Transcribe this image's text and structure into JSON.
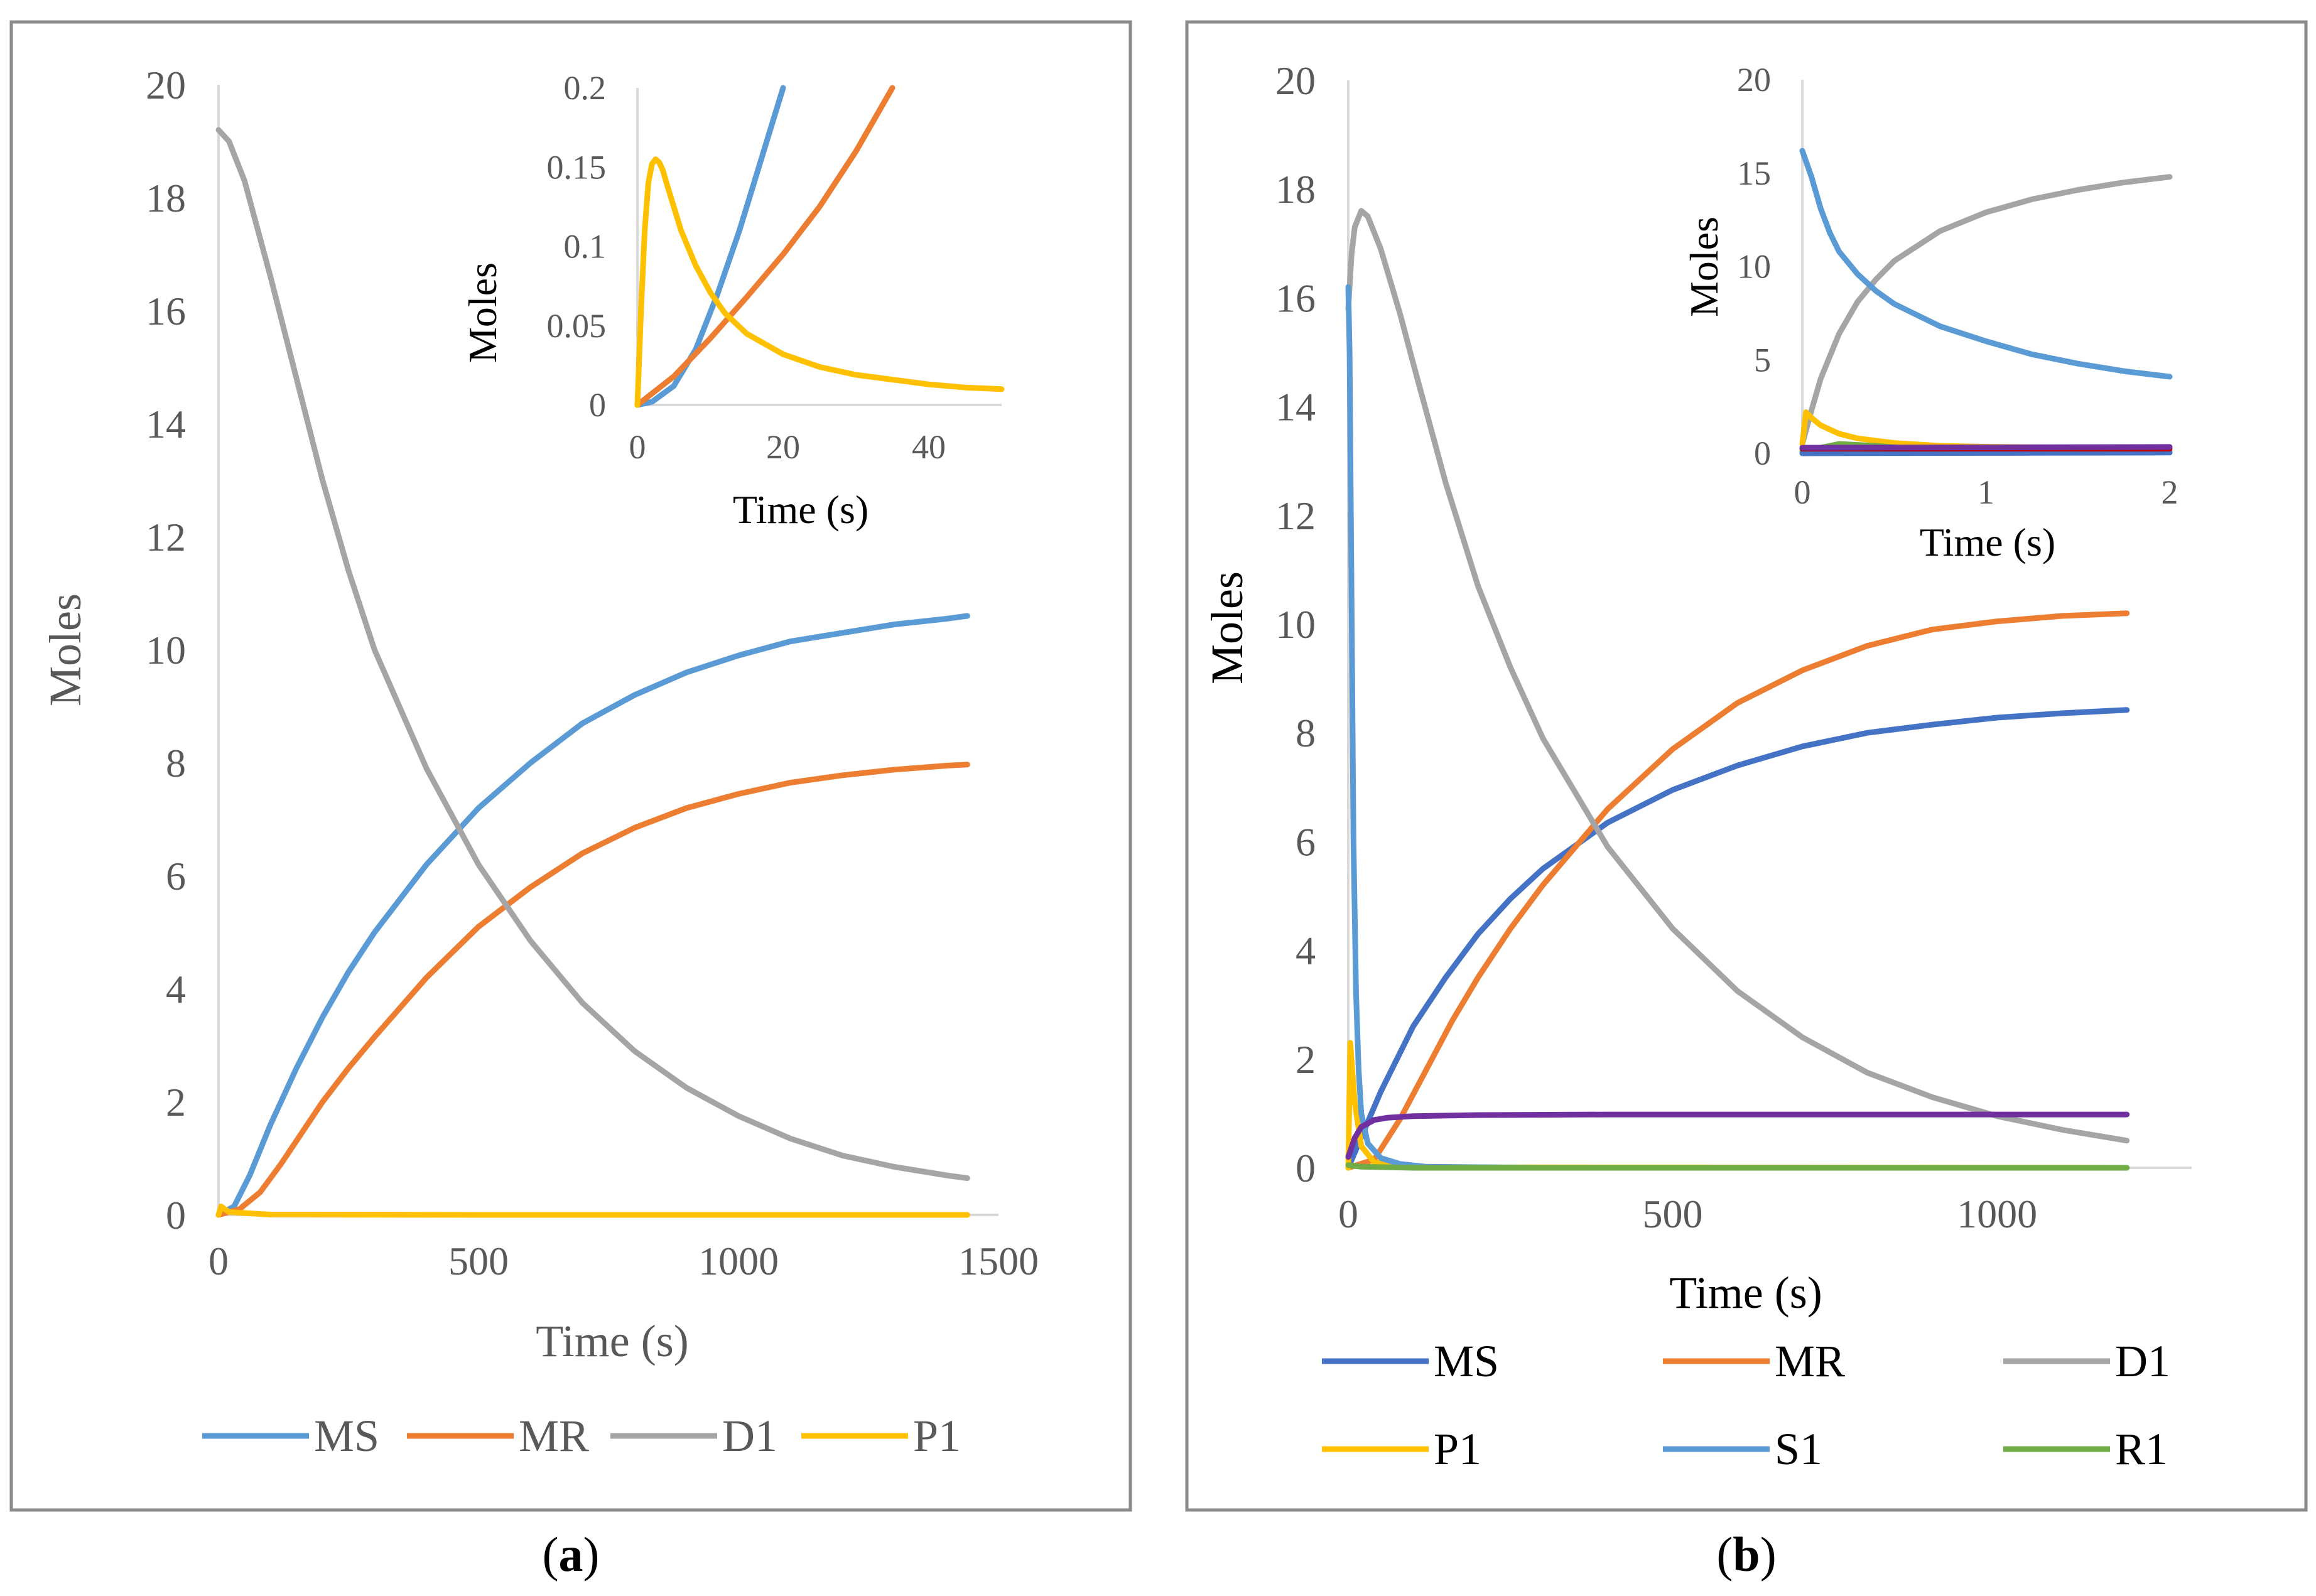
{
  "panels": [
    {
      "caption": "(a)",
      "caption_letter": "a",
      "chart": {
        "type": "line",
        "xlabel": "Time (s)",
        "ylabel": "Moles",
        "xlim": [
          0,
          1500
        ],
        "ylim": [
          0,
          20
        ],
        "xticks": [
          0,
          500,
          1000,
          1500
        ],
        "yticks": [
          0,
          2,
          4,
          6,
          8,
          10,
          12,
          14,
          16,
          18,
          20
        ],
        "legend_position": "bottom",
        "series": [
          {
            "name": "MS",
            "color": "#5B9BD5",
            "x": [
              0,
              30,
              60,
              100,
              150,
              200,
              250,
              300,
              400,
              500,
              600,
              700,
              800,
              900,
              1000,
              1100,
              1200,
              1300,
              1400,
              1440
            ],
            "y": [
              0,
              0.15,
              0.7,
              1.6,
              2.6,
              3.5,
              4.3,
              5.0,
              6.2,
              7.2,
              8.0,
              8.7,
              9.2,
              9.6,
              9.9,
              10.15,
              10.3,
              10.45,
              10.55,
              10.6
            ]
          },
          {
            "name": "MR",
            "color": "#ED7D31",
            "x": [
              0,
              40,
              80,
              120,
              160,
              200,
              250,
              300,
              400,
              500,
              600,
              700,
              800,
              900,
              1000,
              1100,
              1200,
              1300,
              1400,
              1440
            ],
            "y": [
              0,
              0.1,
              0.4,
              0.9,
              1.45,
              2.0,
              2.6,
              3.15,
              4.2,
              5.1,
              5.8,
              6.4,
              6.85,
              7.2,
              7.45,
              7.65,
              7.78,
              7.88,
              7.95,
              7.97
            ]
          },
          {
            "name": "D1",
            "color": "#A5A5A5",
            "x": [
              0,
              20,
              50,
              100,
              150,
              200,
              250,
              300,
              400,
              500,
              600,
              700,
              800,
              900,
              1000,
              1100,
              1200,
              1300,
              1400,
              1440
            ],
            "y": [
              19.2,
              19.0,
              18.3,
              16.6,
              14.8,
              13.0,
              11.4,
              10.0,
              7.9,
              6.2,
              4.85,
              3.75,
              2.9,
              2.25,
              1.75,
              1.35,
              1.05,
              0.85,
              0.7,
              0.65
            ]
          },
          {
            "name": "P1",
            "color": "#FFC000",
            "x": [
              0,
              5,
              20,
              100,
              500,
              1000,
              1440
            ],
            "y": [
              0.0,
              0.15,
              0.05,
              0.005,
              0.0,
              0.0,
              0.0
            ]
          }
        ]
      },
      "inset": {
        "type": "line",
        "xlabel": "Time (s)",
        "ylabel": "Moles",
        "xlim": [
          0,
          50
        ],
        "ylim": [
          0,
          0.2
        ],
        "xticks": [
          0,
          20,
          40
        ],
        "ytick_labels": [
          "0",
          "0.05",
          "0.1",
          "0.15",
          "0.2"
        ],
        "yticks": [
          0,
          0.05,
          0.1,
          0.15,
          0.2
        ],
        "series": [
          {
            "name": "MS",
            "color": "#5B9BD5",
            "x": [
              0,
              2,
              5,
              8,
              11,
              14,
              17,
              20
            ],
            "y": [
              0,
              0.002,
              0.012,
              0.035,
              0.07,
              0.11,
              0.155,
              0.2
            ]
          },
          {
            "name": "MR",
            "color": "#ED7D31",
            "x": [
              0,
              5,
              10,
              15,
              20,
              25,
              30,
              35
            ],
            "y": [
              0,
              0.018,
              0.042,
              0.068,
              0.095,
              0.125,
              0.16,
              0.2
            ]
          },
          {
            "name": "P1",
            "color": "#FFC000",
            "x": [
              0,
              0.5,
              1,
              1.5,
              2,
              2.5,
              3,
              3.5,
              4,
              5,
              6,
              8,
              10,
              12,
              15,
              20,
              25,
              30,
              35,
              40,
              45,
              50
            ],
            "y": [
              0,
              0.06,
              0.11,
              0.14,
              0.152,
              0.155,
              0.153,
              0.148,
              0.14,
              0.125,
              0.11,
              0.088,
              0.071,
              0.058,
              0.045,
              0.032,
              0.024,
              0.019,
              0.016,
              0.013,
              0.011,
              0.01
            ]
          }
        ]
      },
      "legend": [
        {
          "name": "MS",
          "color": "#5B9BD5"
        },
        {
          "name": "MR",
          "color": "#ED7D31"
        },
        {
          "name": "D1",
          "color": "#A5A5A5"
        },
        {
          "name": "P1",
          "color": "#FFC000"
        }
      ]
    },
    {
      "caption": "(b)",
      "caption_letter": "b",
      "chart": {
        "type": "line",
        "xlabel": "Time  (s)",
        "ylabel": "Moles",
        "xlim": [
          0,
          1300
        ],
        "ylim": [
          0,
          20
        ],
        "xticks": [
          0,
          500,
          1000
        ],
        "yticks": [
          0,
          2,
          4,
          6,
          8,
          10,
          12,
          14,
          16,
          18,
          20
        ],
        "legend_position": "bottom",
        "series": [
          {
            "name": "MS",
            "color": "#4472C4",
            "x": [
              0,
              25,
              50,
              100,
              150,
              200,
              250,
              300,
              400,
              500,
              600,
              700,
              800,
              900,
              1000,
              1100,
              1200
            ],
            "y": [
              0,
              0.7,
              1.4,
              2.6,
              3.5,
              4.3,
              4.95,
              5.5,
              6.35,
              6.95,
              7.4,
              7.75,
              8.0,
              8.15,
              8.28,
              8.36,
              8.42
            ]
          },
          {
            "name": "MR",
            "color": "#ED7D31",
            "x": [
              0,
              40,
              80,
              120,
              160,
              200,
              250,
              300,
              400,
              500,
              600,
              700,
              800,
              900,
              1000,
              1100,
              1200
            ],
            "y": [
              0,
              0.15,
              0.9,
              1.8,
              2.7,
              3.5,
              4.4,
              5.2,
              6.6,
              7.7,
              8.55,
              9.15,
              9.6,
              9.9,
              10.05,
              10.15,
              10.2
            ]
          },
          {
            "name": "D1",
            "color": "#A5A5A5",
            "x": [
              0,
              5,
              10,
              20,
              30,
              50,
              80,
              100,
              150,
              200,
              250,
              300,
              400,
              500,
              600,
              700,
              800,
              900,
              1000,
              1100,
              1200
            ],
            "y": [
              15.8,
              16.8,
              17.3,
              17.6,
              17.5,
              16.9,
              15.7,
              14.8,
              12.6,
              10.7,
              9.2,
              7.9,
              5.9,
              4.4,
              3.25,
              2.4,
              1.75,
              1.3,
              0.95,
              0.7,
              0.5
            ]
          },
          {
            "name": "P1",
            "color": "#FFC000",
            "x": [
              0,
              3,
              10,
              20,
              40,
              100,
              1200
            ],
            "y": [
              0,
              2.3,
              1.2,
              0.4,
              0.1,
              0.01,
              0.0
            ]
          },
          {
            "name": "S1",
            "color": "#5B9BD5",
            "x": [
              0,
              2,
              5,
              8,
              12,
              16,
              20,
              30,
              50,
              80,
              120,
              300,
              1200
            ],
            "y": [
              16.2,
              15.0,
              10.5,
              6.0,
              3.2,
              1.8,
              1.0,
              0.45,
              0.18,
              0.07,
              0.02,
              0.0,
              0.0
            ]
          },
          {
            "name": "R1",
            "color": "#70AD47",
            "x": [
              0,
              20,
              100,
              500,
              1200
            ],
            "y": [
              0.05,
              0.02,
              0.0,
              0.0,
              0.0
            ]
          },
          {
            "name": "",
            "color": "#7030A0",
            "x": [
              0,
              10,
              20,
              40,
              60,
              100,
              200,
              400,
              600,
              800,
              1000,
              1200
            ],
            "y": [
              0.2,
              0.55,
              0.75,
              0.88,
              0.92,
              0.95,
              0.97,
              0.98,
              0.98,
              0.98,
              0.98,
              0.98
            ]
          }
        ]
      },
      "inset": {
        "type": "line",
        "xlabel": "Time (s)",
        "ylabel": "Moles",
        "xlim": [
          0,
          2
        ],
        "ylim": [
          0,
          20
        ],
        "xticks": [
          0,
          1,
          2
        ],
        "yticks": [
          0,
          5,
          10,
          15,
          20
        ],
        "series": [
          {
            "name": "D1",
            "color": "#A5A5A5",
            "x": [
              0,
              0.05,
              0.1,
              0.2,
              0.3,
              0.4,
              0.5,
              0.75,
              1.0,
              1.25,
              1.5,
              1.75,
              2.0
            ],
            "y": [
              0.5,
              2.3,
              4.0,
              6.4,
              8.1,
              9.3,
              10.3,
              11.9,
              12.9,
              13.6,
              14.1,
              14.5,
              14.8
            ]
          },
          {
            "name": "S1",
            "color": "#5B9BD5",
            "x": [
              0,
              0.05,
              0.1,
              0.15,
              0.2,
              0.3,
              0.4,
              0.5,
              0.75,
              1.0,
              1.25,
              1.5,
              1.75,
              2.0
            ],
            "y": [
              16.2,
              14.8,
              13.1,
              11.8,
              10.8,
              9.6,
              8.7,
              8.0,
              6.8,
              6.0,
              5.3,
              4.8,
              4.4,
              4.1
            ]
          },
          {
            "name": "P1",
            "color": "#FFC000",
            "x": [
              0,
              0.02,
              0.05,
              0.1,
              0.2,
              0.3,
              0.5,
              0.75,
              1.0,
              1.5,
              2.0
            ],
            "y": [
              0.5,
              2.2,
              1.9,
              1.5,
              1.05,
              0.8,
              0.55,
              0.4,
              0.35,
              0.3,
              0.28
            ]
          },
          {
            "name": "R1",
            "color": "#70AD47",
            "x": [
              0,
              0.2,
              0.4,
              0.6,
              1.0,
              1.5,
              2.0
            ],
            "y": [
              0.1,
              0.5,
              0.4,
              0.25,
              0.15,
              0.1,
              0.08
            ]
          },
          {
            "name": "MS",
            "color": "#4472C4",
            "x": [
              0,
              1,
              2
            ],
            "y": [
              0.0,
              0.02,
              0.04
            ]
          },
          {
            "name": "",
            "color": "#C00000",
            "x": [
              0,
              1,
              2
            ],
            "y": [
              0.25,
              0.25,
              0.25
            ]
          },
          {
            "name": "",
            "color": "#7030A0",
            "x": [
              0,
              1,
              2
            ],
            "y": [
              0.3,
              0.32,
              0.34
            ]
          }
        ]
      },
      "legend": [
        {
          "name": "MS",
          "color": "#4472C4"
        },
        {
          "name": "MR",
          "color": "#ED7D31"
        },
        {
          "name": "D1",
          "color": "#A5A5A5"
        },
        {
          "name": "P1",
          "color": "#FFC000"
        },
        {
          "name": "S1",
          "color": "#5B9BD5"
        },
        {
          "name": "R1",
          "color": "#70AD47"
        }
      ]
    }
  ]
}
